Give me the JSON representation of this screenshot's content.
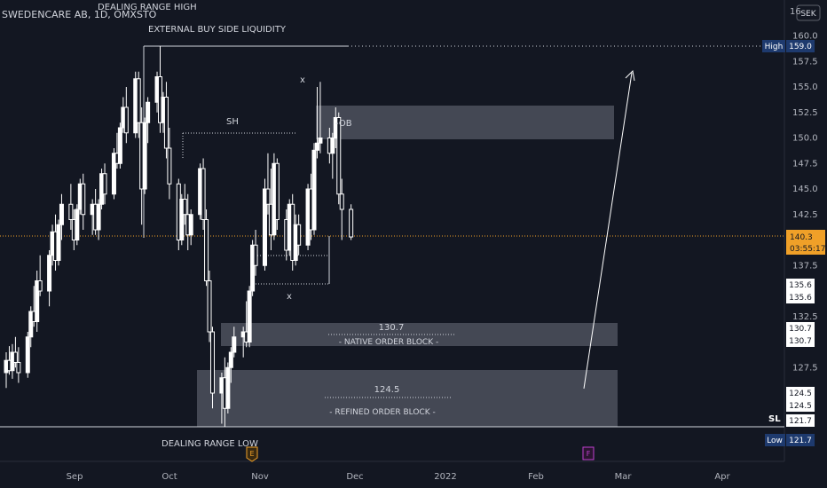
{
  "header": {
    "symbol_line": "SWEDENCARE AB, 1D, OMXSTO",
    "currency": "SEK"
  },
  "annotations": {
    "dealing_range_high": "DEALING RANGE HIGH",
    "external_liquidity": "EXTERNAL BUY SIDE LIQUIDITY",
    "sh": "SH",
    "x_top": "x",
    "x_bottom": "x",
    "ob": "-OB",
    "native_price": "130.7",
    "native_label": "- NATIVE ORDER BLOCK -",
    "refined_price": "124.5",
    "refined_label": "- REFINED ORDER BLOCK -",
    "dealing_range_low": "DEALING RANGE LOW",
    "sl": "SL",
    "earnings_marker": "E",
    "future_marker": "F"
  },
  "price_axis": {
    "ticks": [
      "160.0",
      "157.5",
      "155.0",
      "152.5",
      "150.0",
      "147.5",
      "145.0",
      "142.5",
      "137.5",
      "132.5",
      "127.5"
    ],
    "tick_values": [
      160.0,
      157.5,
      155.0,
      152.5,
      150.0,
      147.5,
      145.0,
      142.5,
      137.5,
      132.5,
      127.5
    ],
    "top_partial": "16",
    "high_label": "High",
    "high_value": "159.0",
    "current_price": "140.3",
    "countdown": "03:55:17",
    "tags": [
      {
        "text": "135.6",
        "value": 135.6
      },
      {
        "text": "135.6",
        "value": 135.6
      },
      {
        "text": "130.7",
        "value": 130.7
      },
      {
        "text": "130.7",
        "value": 130.7
      },
      {
        "text": "124.5",
        "value": 124.5
      },
      {
        "text": "124.5",
        "value": 124.5
      },
      {
        "text": "121.7",
        "value": 121.7
      }
    ],
    "low_label": "Low",
    "low_value": "121.7"
  },
  "time_axis": {
    "labels": [
      "Sep",
      "Oct",
      "Nov",
      "Dec",
      "2022",
      "Feb",
      "Mar",
      "Apr"
    ]
  },
  "colors": {
    "background": "#131722",
    "candle_up": "#ffffff",
    "candle_down": "#ffffff",
    "zone_fill": "#4a4e5a",
    "current_price": "#f0a028",
    "high_low_tag": "#1e3a6e"
  },
  "chart_data": {
    "type": "candlestick",
    "symbol": "SWEDENCARE AB",
    "interval": "1D",
    "exchange": "OMXSTO",
    "currency": "SEK",
    "ylim": [
      119.0,
      162.0
    ],
    "x_range": [
      "2021-08-09",
      "2022-04-20"
    ],
    "candles": [
      {
        "d": "2021-08-09",
        "o": 127.0,
        "h": 129.0,
        "l": 125.5,
        "c": 128.2
      },
      {
        "d": "2021-08-10",
        "o": 128.2,
        "h": 129.6,
        "l": 126.8,
        "c": 127.2
      },
      {
        "d": "2021-08-11",
        "o": 127.2,
        "h": 129.8,
        "l": 126.4,
        "c": 129.0
      },
      {
        "d": "2021-08-12",
        "o": 129.0,
        "h": 130.5,
        "l": 127.5,
        "c": 128.0
      },
      {
        "d": "2021-08-13",
        "o": 128.0,
        "h": 129.5,
        "l": 126.0,
        "c": 127.0
      },
      {
        "d": "2021-08-16",
        "o": 127.0,
        "h": 131.0,
        "l": 126.5,
        "c": 130.5
      },
      {
        "d": "2021-08-17",
        "o": 130.5,
        "h": 133.5,
        "l": 129.5,
        "c": 133.0
      },
      {
        "d": "2021-08-18",
        "o": 133.0,
        "h": 135.5,
        "l": 131.5,
        "c": 132.0
      },
      {
        "d": "2021-08-19",
        "o": 132.0,
        "h": 137.0,
        "l": 131.0,
        "c": 136.0
      },
      {
        "d": "2021-08-20",
        "o": 136.0,
        "h": 138.5,
        "l": 134.5,
        "c": 135.0
      },
      {
        "d": "2021-08-23",
        "o": 135.0,
        "h": 139.0,
        "l": 133.5,
        "c": 138.5
      },
      {
        "d": "2021-08-24",
        "o": 138.5,
        "h": 141.5,
        "l": 137.5,
        "c": 140.8
      },
      {
        "d": "2021-08-25",
        "o": 140.8,
        "h": 142.5,
        "l": 137.0,
        "c": 138.0
      },
      {
        "d": "2021-08-26",
        "o": 138.0,
        "h": 142.0,
        "l": 137.5,
        "c": 141.5
      },
      {
        "d": "2021-08-27",
        "o": 141.5,
        "h": 144.5,
        "l": 140.0,
        "c": 143.5
      },
      {
        "d": "2021-08-30",
        "o": 143.5,
        "h": 145.5,
        "l": 141.0,
        "c": 142.0
      },
      {
        "d": "2021-08-31",
        "o": 142.0,
        "h": 143.0,
        "l": 139.0,
        "c": 140.0
      },
      {
        "d": "2021-09-01",
        "o": 140.0,
        "h": 143.5,
        "l": 139.5,
        "c": 143.0
      },
      {
        "d": "2021-09-02",
        "o": 143.0,
        "h": 146.0,
        "l": 142.5,
        "c": 145.5
      },
      {
        "d": "2021-09-03",
        "o": 145.5,
        "h": 146.5,
        "l": 141.0,
        "c": 142.5
      },
      {
        "d": "2021-09-06",
        "o": 142.5,
        "h": 144.0,
        "l": 140.5,
        "c": 143.5
      },
      {
        "d": "2021-09-07",
        "o": 143.5,
        "h": 145.0,
        "l": 140.5,
        "c": 141.0
      },
      {
        "d": "2021-09-08",
        "o": 141.0,
        "h": 144.0,
        "l": 140.0,
        "c": 143.5
      },
      {
        "d": "2021-09-09",
        "o": 143.5,
        "h": 147.0,
        "l": 143.0,
        "c": 146.5
      },
      {
        "d": "2021-09-10",
        "o": 146.5,
        "h": 147.5,
        "l": 143.5,
        "c": 144.5
      },
      {
        "d": "2021-09-13",
        "o": 144.5,
        "h": 149.0,
        "l": 144.0,
        "c": 148.5
      },
      {
        "d": "2021-09-14",
        "o": 148.5,
        "h": 150.5,
        "l": 147.0,
        "c": 147.5
      },
      {
        "d": "2021-09-15",
        "o": 147.5,
        "h": 151.5,
        "l": 147.0,
        "c": 151.0
      },
      {
        "d": "2021-09-16",
        "o": 151.0,
        "h": 154.0,
        "l": 150.5,
        "c": 153.0
      },
      {
        "d": "2021-09-17",
        "o": 153.0,
        "h": 155.0,
        "l": 149.5,
        "c": 150.5
      },
      {
        "d": "2021-09-20",
        "o": 150.5,
        "h": 156.5,
        "l": 150.0,
        "c": 155.8
      },
      {
        "d": "2021-09-21",
        "o": 155.8,
        "h": 156.5,
        "l": 150.0,
        "c": 151.5
      },
      {
        "d": "2021-09-22",
        "o": 151.5,
        "h": 153.0,
        "l": 141.5,
        "c": 145.0
      },
      {
        "d": "2021-09-23",
        "o": 145.0,
        "h": 152.0,
        "l": 144.5,
        "c": 151.5
      },
      {
        "d": "2021-09-24",
        "o": 151.5,
        "h": 154.0,
        "l": 149.5,
        "c": 153.5
      },
      {
        "d": "2021-09-27",
        "o": 153.5,
        "h": 156.5,
        "l": 152.5,
        "c": 156.0
      },
      {
        "d": "2021-09-28",
        "o": 156.0,
        "h": 159.0,
        "l": 150.5,
        "c": 151.5
      },
      {
        "d": "2021-09-29",
        "o": 151.5,
        "h": 154.5,
        "l": 150.5,
        "c": 154.0
      },
      {
        "d": "2021-09-30",
        "o": 154.0,
        "h": 155.5,
        "l": 148.0,
        "c": 149.0
      },
      {
        "d": "2021-10-01",
        "o": 149.0,
        "h": 151.0,
        "l": 144.0,
        "c": 145.5
      },
      {
        "d": "2021-10-04",
        "o": 145.5,
        "h": 146.0,
        "l": 139.0,
        "c": 140.0
      },
      {
        "d": "2021-10-05",
        "o": 140.0,
        "h": 144.5,
        "l": 139.5,
        "c": 144.0
      },
      {
        "d": "2021-10-06",
        "o": 144.0,
        "h": 145.5,
        "l": 141.5,
        "c": 142.5
      },
      {
        "d": "2021-10-07",
        "o": 142.5,
        "h": 144.5,
        "l": 139.0,
        "c": 140.5
      },
      {
        "d": "2021-10-08",
        "o": 140.5,
        "h": 143.0,
        "l": 139.5,
        "c": 142.5
      },
      {
        "d": "2021-10-11",
        "o": 142.5,
        "h": 147.5,
        "l": 142.0,
        "c": 147.0
      },
      {
        "d": "2021-10-12",
        "o": 147.0,
        "h": 148.0,
        "l": 141.0,
        "c": 142.0
      },
      {
        "d": "2021-10-13",
        "o": 142.0,
        "h": 143.0,
        "l": 135.5,
        "c": 136.0
      },
      {
        "d": "2021-10-14",
        "o": 136.0,
        "h": 137.0,
        "l": 130.0,
        "c": 131.0
      },
      {
        "d": "2021-10-15",
        "o": 131.0,
        "h": 131.5,
        "l": 123.5,
        "c": 125.0
      },
      {
        "d": "2021-10-18",
        "o": 125.0,
        "h": 127.0,
        "l": 122.0,
        "c": 126.5
      },
      {
        "d": "2021-10-19",
        "o": 126.5,
        "h": 128.5,
        "l": 121.7,
        "c": 123.5
      },
      {
        "d": "2021-10-20",
        "o": 123.5,
        "h": 128.0,
        "l": 123.0,
        "c": 127.5
      },
      {
        "d": "2021-10-21",
        "o": 127.5,
        "h": 129.5,
        "l": 126.0,
        "c": 129.0
      },
      {
        "d": "2021-10-22",
        "o": 129.0,
        "h": 131.5,
        "l": 128.5,
        "c": 130.5
      },
      {
        "d": "2021-10-25",
        "o": 130.5,
        "h": 131.5,
        "l": 128.5,
        "c": 131.0
      },
      {
        "d": "2021-10-26",
        "o": 131.0,
        "h": 134.0,
        "l": 129.5,
        "c": 130.0
      },
      {
        "d": "2021-10-27",
        "o": 130.0,
        "h": 135.5,
        "l": 129.5,
        "c": 135.0
      },
      {
        "d": "2021-10-28",
        "o": 135.0,
        "h": 140.0,
        "l": 134.5,
        "c": 139.5
      },
      {
        "d": "2021-10-29",
        "o": 139.5,
        "h": 141.0,
        "l": 136.5,
        "c": 137.5
      },
      {
        "d": "2021-11-01",
        "o": 137.5,
        "h": 146.0,
        "l": 137.0,
        "c": 145.0
      },
      {
        "d": "2021-11-02",
        "o": 145.0,
        "h": 148.5,
        "l": 142.5,
        "c": 143.5
      },
      {
        "d": "2021-11-03",
        "o": 143.5,
        "h": 147.0,
        "l": 139.0,
        "c": 140.5
      },
      {
        "d": "2021-11-04",
        "o": 140.5,
        "h": 148.5,
        "l": 140.0,
        "c": 147.5
      },
      {
        "d": "2021-11-05",
        "o": 147.5,
        "h": 148.0,
        "l": 141.0,
        "c": 142.0
      },
      {
        "d": "2021-11-08",
        "o": 142.0,
        "h": 143.0,
        "l": 138.0,
        "c": 139.0
      },
      {
        "d": "2021-11-09",
        "o": 139.0,
        "h": 144.0,
        "l": 138.5,
        "c": 143.5
      },
      {
        "d": "2021-11-10",
        "o": 143.5,
        "h": 144.5,
        "l": 137.0,
        "c": 138.0
      },
      {
        "d": "2021-11-11",
        "o": 138.0,
        "h": 142.5,
        "l": 137.5,
        "c": 141.5
      },
      {
        "d": "2021-11-12",
        "o": 141.5,
        "h": 142.5,
        "l": 138.5,
        "c": 139.5
      },
      {
        "d": "2021-11-15",
        "o": 139.5,
        "h": 145.5,
        "l": 139.0,
        "c": 145.0
      },
      {
        "d": "2021-11-16",
        "o": 145.0,
        "h": 146.5,
        "l": 140.0,
        "c": 141.0
      },
      {
        "d": "2021-11-17",
        "o": 141.0,
        "h": 149.5,
        "l": 140.5,
        "c": 148.8
      },
      {
        "d": "2021-11-18",
        "o": 148.8,
        "h": 155.0,
        "l": 148.0,
        "c": 149.5
      },
      {
        "d": "2021-11-19",
        "o": 149.5,
        "h": 155.5,
        "l": 148.5,
        "c": 150.0
      },
      {
        "d": "2021-11-22",
        "o": 150.0,
        "h": 151.0,
        "l": 147.5,
        "c": 148.5
      },
      {
        "d": "2021-11-23",
        "o": 148.5,
        "h": 150.5,
        "l": 146.0,
        "c": 150.0
      },
      {
        "d": "2021-11-24",
        "o": 150.0,
        "h": 153.0,
        "l": 149.0,
        "c": 152.0
      },
      {
        "d": "2021-11-25",
        "o": 152.0,
        "h": 152.5,
        "l": 143.5,
        "c": 144.5
      },
      {
        "d": "2021-11-26",
        "o": 144.5,
        "h": 146.0,
        "l": 140.0,
        "c": 143.0
      },
      {
        "d": "2021-11-29",
        "o": 143.0,
        "h": 143.5,
        "l": 140.0,
        "c": 140.3
      }
    ]
  }
}
